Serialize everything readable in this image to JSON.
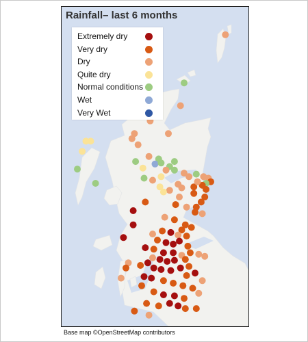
{
  "title": "Rainfall– last 6 months",
  "attribution": "Base map ©OpenStreetMap contributors",
  "colors": {
    "sea": "#d4dff0",
    "land": "#f2f2ef",
    "extremely_dry": "#a50f0f",
    "very_dry": "#d85a14",
    "dry": "#eda276",
    "quite_dry": "#fbe397",
    "normal": "#9dcc82",
    "wet": "#8fa9d6",
    "very_wet": "#2f58a4"
  },
  "legend": [
    {
      "label": "Extremely dry",
      "category": "extremely_dry"
    },
    {
      "label": "Very dry",
      "category": "very_dry"
    },
    {
      "label": "Dry",
      "category": "dry"
    },
    {
      "label": "Quite dry",
      "category": "quite_dry"
    },
    {
      "label": "Normal conditions",
      "category": "normal"
    },
    {
      "label": "Wet",
      "category": "wet"
    },
    {
      "label": "Very Wet",
      "category": "very_wet"
    }
  ],
  "stations": [
    {
      "lat": 60.35,
      "lon": -1.25,
      "category": "dry"
    },
    {
      "lat": 59.4,
      "lon": -2.95,
      "category": "normal"
    },
    {
      "lat": 58.95,
      "lon": -3.1,
      "category": "dry"
    },
    {
      "lat": 58.65,
      "lon": -4.35,
      "category": "dry"
    },
    {
      "lat": 58.4,
      "lon": -5.0,
      "category": "dry"
    },
    {
      "lat": 58.3,
      "lon": -5.1,
      "category": "dry"
    },
    {
      "lat": 58.4,
      "lon": -3.6,
      "category": "dry"
    },
    {
      "lat": 58.18,
      "lon": -4.85,
      "category": "dry"
    },
    {
      "lat": 58.25,
      "lon": -7.0,
      "category": "quite_dry"
    },
    {
      "lat": 58.25,
      "lon": -6.8,
      "category": "quite_dry"
    },
    {
      "lat": 58.05,
      "lon": -7.15,
      "category": "quite_dry"
    },
    {
      "lat": 57.7,
      "lon": -7.35,
      "category": "normal"
    },
    {
      "lat": 57.85,
      "lon": -4.95,
      "category": "normal"
    },
    {
      "lat": 57.95,
      "lon": -4.4,
      "category": "dry"
    },
    {
      "lat": 57.9,
      "lon": -4.0,
      "category": "normal"
    },
    {
      "lat": 57.8,
      "lon": -4.15,
      "category": "wet"
    },
    {
      "lat": 57.72,
      "lon": -4.65,
      "category": "quite_dry"
    },
    {
      "lat": 57.82,
      "lon": -3.9,
      "category": "normal"
    },
    {
      "lat": 57.85,
      "lon": -3.35,
      "category": "normal"
    },
    {
      "lat": 57.75,
      "lon": -3.55,
      "category": "normal"
    },
    {
      "lat": 57.68,
      "lon": -3.35,
      "category": "normal"
    },
    {
      "lat": 57.68,
      "lon": -3.7,
      "category": "dry"
    },
    {
      "lat": 57.62,
      "lon": -2.95,
      "category": "dry"
    },
    {
      "lat": 57.6,
      "lon": -2.45,
      "category": "normal"
    },
    {
      "lat": 57.55,
      "lon": -2.15,
      "category": "dry"
    },
    {
      "lat": 57.52,
      "lon": -1.95,
      "category": "dry"
    },
    {
      "lat": 57.45,
      "lon": -1.85,
      "category": "very_dry"
    },
    {
      "lat": 57.42,
      "lon": -2.05,
      "category": "normal"
    },
    {
      "lat": 57.38,
      "lon": -2.2,
      "category": "very_dry"
    },
    {
      "lat": 57.3,
      "lon": -2.05,
      "category": "very_dry"
    },
    {
      "lat": 57.35,
      "lon": -2.55,
      "category": "very_dry"
    },
    {
      "lat": 57.45,
      "lon": -2.4,
      "category": "dry"
    },
    {
      "lat": 57.55,
      "lon": -2.75,
      "category": "dry"
    },
    {
      "lat": 57.48,
      "lon": -4.25,
      "category": "dry"
    },
    {
      "lat": 57.55,
      "lon": -3.9,
      "category": "quite_dry"
    },
    {
      "lat": 57.52,
      "lon": -4.6,
      "category": "normal"
    },
    {
      "lat": 57.4,
      "lon": -3.2,
      "category": "dry"
    },
    {
      "lat": 57.33,
      "lon": -3.05,
      "category": "dry"
    },
    {
      "lat": 57.28,
      "lon": -3.55,
      "category": "dry"
    },
    {
      "lat": 57.25,
      "lon": -3.8,
      "category": "quite_dry"
    },
    {
      "lat": 57.35,
      "lon": -3.95,
      "category": "quite_dry"
    },
    {
      "lat": 57.42,
      "lon": -6.6,
      "category": "normal"
    },
    {
      "lat": 57.22,
      "lon": -2.55,
      "category": "very_dry"
    },
    {
      "lat": 57.15,
      "lon": -2.1,
      "category": "very_dry"
    },
    {
      "lat": 57.05,
      "lon": -2.25,
      "category": "very_dry"
    },
    {
      "lat": 56.95,
      "lon": -2.45,
      "category": "very_dry"
    },
    {
      "lat": 56.85,
      "lon": -2.5,
      "category": "very_dry"
    },
    {
      "lat": 56.82,
      "lon": -2.2,
      "category": "dry"
    },
    {
      "lat": 56.95,
      "lon": -2.85,
      "category": "dry"
    },
    {
      "lat": 57.0,
      "lon": -3.3,
      "category": "very_dry"
    },
    {
      "lat": 57.15,
      "lon": -3.15,
      "category": "dry"
    },
    {
      "lat": 57.05,
      "lon": -4.55,
      "category": "very_dry"
    },
    {
      "lat": 56.88,
      "lon": -5.05,
      "category": "extremely_dry"
    },
    {
      "lat": 56.75,
      "lon": -3.75,
      "category": "dry"
    },
    {
      "lat": 56.7,
      "lon": -3.35,
      "category": "very_dry"
    },
    {
      "lat": 56.6,
      "lon": -2.9,
      "category": "very_dry"
    },
    {
      "lat": 56.55,
      "lon": -2.65,
      "category": "very_dry"
    },
    {
      "lat": 56.5,
      "lon": -3.05,
      "category": "very_dry"
    },
    {
      "lat": 56.45,
      "lon": -3.5,
      "category": "extremely_dry"
    },
    {
      "lat": 56.48,
      "lon": -3.85,
      "category": "very_dry"
    },
    {
      "lat": 56.4,
      "lon": -3.2,
      "category": "dry"
    },
    {
      "lat": 56.38,
      "lon": -2.85,
      "category": "very_dry"
    },
    {
      "lat": 56.42,
      "lon": -4.25,
      "category": "dry"
    },
    {
      "lat": 56.3,
      "lon": -4.05,
      "category": "very_dry"
    },
    {
      "lat": 56.25,
      "lon": -3.7,
      "category": "extremely_dry"
    },
    {
      "lat": 56.22,
      "lon": -3.4,
      "category": "extremely_dry"
    },
    {
      "lat": 56.28,
      "lon": -3.15,
      "category": "extremely_dry"
    },
    {
      "lat": 56.18,
      "lon": -2.8,
      "category": "very_dry"
    },
    {
      "lat": 56.6,
      "lon": -5.05,
      "category": "extremely_dry"
    },
    {
      "lat": 56.35,
      "lon": -5.45,
      "category": "extremely_dry"
    },
    {
      "lat": 56.15,
      "lon": -4.55,
      "category": "extremely_dry"
    },
    {
      "lat": 56.12,
      "lon": -4.2,
      "category": "very_dry"
    },
    {
      "lat": 56.05,
      "lon": -3.8,
      "category": "extremely_dry"
    },
    {
      "lat": 56.05,
      "lon": -3.4,
      "category": "extremely_dry"
    },
    {
      "lat": 56.0,
      "lon": -3.05,
      "category": "dry"
    },
    {
      "lat": 56.05,
      "lon": -2.7,
      "category": "very_dry"
    },
    {
      "lat": 56.02,
      "lon": -2.35,
      "category": "dry"
    },
    {
      "lat": 55.98,
      "lon": -2.1,
      "category": "dry"
    },
    {
      "lat": 55.92,
      "lon": -2.9,
      "category": "very_dry"
    },
    {
      "lat": 55.9,
      "lon": -3.35,
      "category": "extremely_dry"
    },
    {
      "lat": 55.88,
      "lon": -3.65,
      "category": "extremely_dry"
    },
    {
      "lat": 55.92,
      "lon": -3.95,
      "category": "extremely_dry"
    },
    {
      "lat": 55.95,
      "lon": -4.25,
      "category": "dry"
    },
    {
      "lat": 55.85,
      "lon": -4.45,
      "category": "extremely_dry"
    },
    {
      "lat": 55.8,
      "lon": -4.75,
      "category": "very_dry"
    },
    {
      "lat": 55.85,
      "lon": -5.25,
      "category": "dry"
    },
    {
      "lat": 55.75,
      "lon": -5.35,
      "category": "very_dry"
    },
    {
      "lat": 55.75,
      "lon": -4.2,
      "category": "extremely_dry"
    },
    {
      "lat": 55.72,
      "lon": -3.9,
      "category": "extremely_dry"
    },
    {
      "lat": 55.7,
      "lon": -3.5,
      "category": "extremely_dry"
    },
    {
      "lat": 55.75,
      "lon": -3.1,
      "category": "extremely_dry"
    },
    {
      "lat": 55.78,
      "lon": -2.75,
      "category": "very_dry"
    },
    {
      "lat": 55.65,
      "lon": -2.5,
      "category": "extremely_dry"
    },
    {
      "lat": 55.6,
      "lon": -2.85,
      "category": "very_dry"
    },
    {
      "lat": 55.58,
      "lon": -4.6,
      "category": "extremely_dry"
    },
    {
      "lat": 55.55,
      "lon": -4.3,
      "category": "extremely_dry"
    },
    {
      "lat": 55.5,
      "lon": -3.8,
      "category": "very_dry"
    },
    {
      "lat": 55.45,
      "lon": -3.4,
      "category": "very_dry"
    },
    {
      "lat": 55.4,
      "lon": -3.0,
      "category": "very_dry"
    },
    {
      "lat": 55.35,
      "lon": -2.6,
      "category": "very_dry"
    },
    {
      "lat": 55.5,
      "lon": -2.2,
      "category": "dry"
    },
    {
      "lat": 55.4,
      "lon": -4.7,
      "category": "very_dry"
    },
    {
      "lat": 55.55,
      "lon": -5.55,
      "category": "dry"
    },
    {
      "lat": 55.28,
      "lon": -4.2,
      "category": "very_dry"
    },
    {
      "lat": 55.22,
      "lon": -3.8,
      "category": "extremely_dry"
    },
    {
      "lat": 55.2,
      "lon": -3.35,
      "category": "extremely_dry"
    },
    {
      "lat": 55.15,
      "lon": -2.95,
      "category": "very_dry"
    },
    {
      "lat": 55.05,
      "lon": -3.55,
      "category": "extremely_dry"
    },
    {
      "lat": 55.0,
      "lon": -3.2,
      "category": "extremely_dry"
    },
    {
      "lat": 54.95,
      "lon": -2.9,
      "category": "very_dry"
    },
    {
      "lat": 55.0,
      "lon": -4.0,
      "category": "very_dry"
    },
    {
      "lat": 55.05,
      "lon": -4.5,
      "category": "very_dry"
    },
    {
      "lat": 54.9,
      "lon": -5.0,
      "category": "very_dry"
    },
    {
      "lat": 54.82,
      "lon": -4.4,
      "category": "dry"
    },
    {
      "lat": 54.95,
      "lon": -2.45,
      "category": "very_dry"
    },
    {
      "lat": 55.25,
      "lon": -2.35,
      "category": "dry"
    }
  ]
}
